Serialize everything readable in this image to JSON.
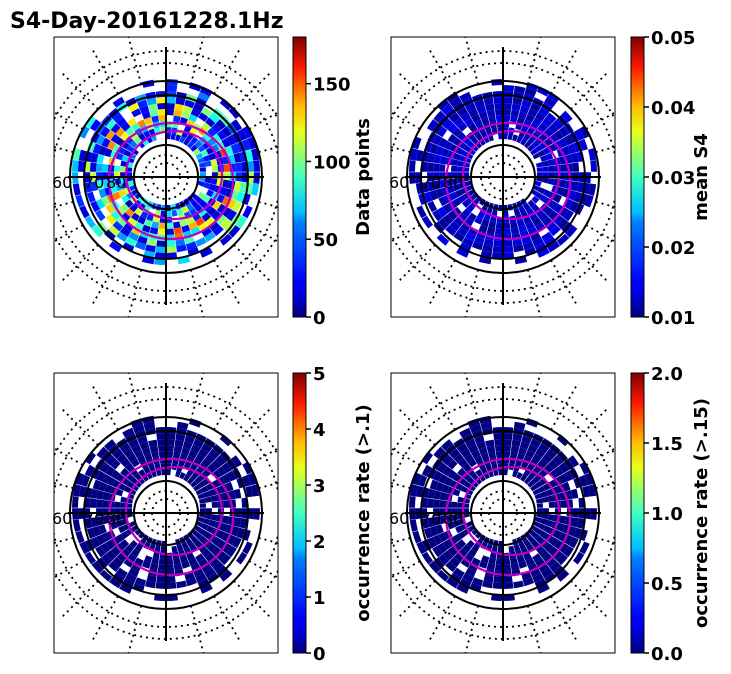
{
  "figure": {
    "title": "S4-Day-20161228.1Hz"
  },
  "chart_data": [
    {
      "type": "heatmap",
      "projection": "polar",
      "colormap": "jet",
      "colorbar_label": "Data points",
      "vmin": 0,
      "vmax": 180,
      "colorbar_ticks": [
        "0",
        "50",
        "100",
        "150"
      ],
      "colorbar_tick_values": [
        0,
        50,
        100,
        150
      ],
      "lat_labels": [
        "60",
        "70",
        "80"
      ],
      "pattern": "counts"
    },
    {
      "type": "heatmap",
      "projection": "polar",
      "colormap": "jet",
      "colorbar_label": "mean S4",
      "vmin": 0.01,
      "vmax": 0.05,
      "colorbar_ticks": [
        "0.01",
        "0.02",
        "0.03",
        "0.04",
        "0.05"
      ],
      "colorbar_tick_values": [
        0.01,
        0.02,
        0.03,
        0.04,
        0.05
      ],
      "lat_labels": [
        "60",
        "70",
        "80"
      ],
      "pattern": "low"
    },
    {
      "type": "heatmap",
      "projection": "polar",
      "colormap": "jet",
      "colorbar_label": "occurrence rate (>.1)",
      "vmin": 0,
      "vmax": 5,
      "colorbar_ticks": [
        "0",
        "1",
        "2",
        "3",
        "4",
        "5"
      ],
      "colorbar_tick_values": [
        0,
        1,
        2,
        3,
        4,
        5
      ],
      "lat_labels": [
        "60",
        "70",
        "80"
      ],
      "pattern": "zero"
    },
    {
      "type": "heatmap",
      "projection": "polar",
      "colormap": "jet",
      "colorbar_label": "occurrence rate (>.15)",
      "vmin": 0.0,
      "vmax": 2.0,
      "colorbar_ticks": [
        "0.0",
        "0.5",
        "1.0",
        "1.5",
        "2.0"
      ],
      "colorbar_tick_values": [
        0.0,
        0.5,
        1.0,
        1.5,
        2.0
      ],
      "lat_labels": [
        "60",
        "70",
        "80"
      ],
      "pattern": "zero"
    }
  ]
}
